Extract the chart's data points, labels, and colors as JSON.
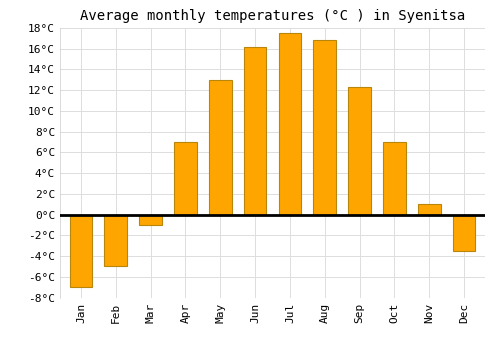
{
  "months": [
    "Jan",
    "Feb",
    "Mar",
    "Apr",
    "May",
    "Jun",
    "Jul",
    "Aug",
    "Sep",
    "Oct",
    "Nov",
    "Dec"
  ],
  "temperatures": [
    -7.0,
    -5.0,
    -1.0,
    7.0,
    13.0,
    16.2,
    17.5,
    16.8,
    12.3,
    7.0,
    1.0,
    -3.5
  ],
  "bar_color": "#FFA500",
  "bar_edge_color": "#b8860b",
  "title": "Average monthly temperatures (°C ) in Syenitsa",
  "ylim": [
    -8,
    18
  ],
  "ytick_step": 2,
  "background_color": "#ffffff",
  "plot_bg_color": "#ffffff",
  "grid_color": "#dddddd",
  "title_fontsize": 10,
  "tick_fontsize": 8,
  "font_family": "monospace"
}
